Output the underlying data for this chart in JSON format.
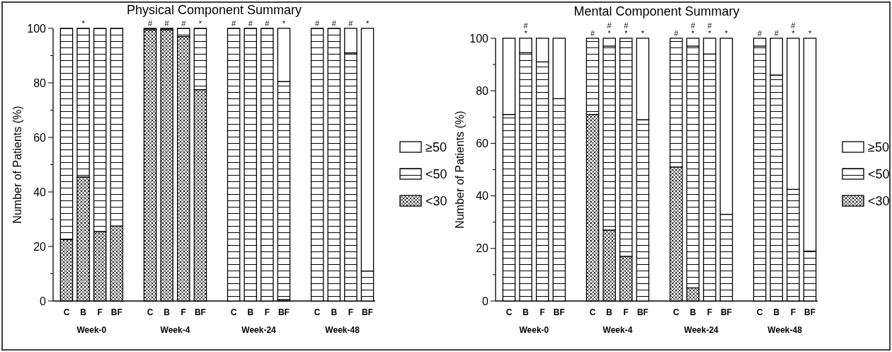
{
  "chart_data": [
    {
      "type": "bar",
      "stacked": true,
      "title": "Physical Component Summary",
      "ylabel": "Number of Patients (%)",
      "legend": "right",
      "grid": false,
      "categories": [
        "C",
        "B",
        "F",
        "BF",
        null,
        "C",
        "B",
        "F",
        "BF",
        null,
        "C",
        "B",
        "F",
        "BF",
        null,
        "C",
        "B",
        "F",
        "BF"
      ],
      "annotations": [
        "Week-0",
        "Week-4",
        "Week-24",
        "Week-48"
      ],
      "ylim": [
        0,
        100
      ],
      "yticks": [
        0,
        {
          "value": 10,
          "label": null
        },
        20,
        {
          "value": 30,
          "label": null
        },
        40,
        {
          "value": 50,
          "label": null
        },
        60,
        {
          "value": 70,
          "label": null
        },
        80,
        {
          "value": 90,
          "label": null
        },
        100
      ],
      "series": [
        {
          "name": "<30",
          "color": "#000000",
          "values": [
            22.5,
            45.5,
            25.5,
            27.5,
            null,
            99.5,
            99.5,
            97,
            77.5,
            null,
            0,
            0,
            0,
            0.5,
            null,
            0,
            0,
            0,
            0
          ]
        },
        {
          "name": "<50",
          "color": "#000000",
          "values": [
            77.5,
            54.5,
            74.5,
            72.5,
            null,
            0.5,
            0.5,
            3,
            22.5,
            null,
            100,
            100,
            100,
            80,
            null,
            100,
            100,
            91,
            11
          ]
        },
        {
          "name": "≥50",
          "color": "#000000",
          "values": [
            0,
            0,
            0,
            0,
            null,
            0,
            0,
            0,
            0,
            null,
            0,
            0,
            0,
            19.5,
            null,
            0,
            0,
            9,
            89
          ],
          "value_labels": [
            null,
            "*",
            null,
            null,
            null,
            "#",
            "#",
            "#",
            "*",
            null,
            "#",
            "#",
            "#",
            "*",
            null,
            "#",
            "#",
            "#",
            "*"
          ]
        }
      ]
    },
    {
      "type": "bar",
      "stacked": true,
      "title": "Mental Component Summary",
      "ylabel": "Number of Patients (%)",
      "legend": "right",
      "grid": false,
      "categories": [
        "C",
        "B",
        "F",
        "BF",
        null,
        "C",
        "B",
        "F",
        "BF",
        null,
        "C",
        "B",
        "F",
        "BF",
        null,
        "C",
        "B",
        "F",
        "BF"
      ],
      "annotations": [
        "Week-0",
        "Week-4",
        "Week-24",
        "Week-48"
      ],
      "ylim": [
        0,
        100
      ],
      "yticks": [
        0,
        {
          "value": 10,
          "label": null
        },
        20,
        {
          "value": 30,
          "label": null
        },
        40,
        {
          "value": 50,
          "label": null
        },
        60,
        {
          "value": 70,
          "label": null
        },
        80,
        {
          "value": 90,
          "label": null
        },
        100
      ],
      "series": [
        {
          "name": "<30",
          "color": "#000000",
          "values": [
            0,
            0,
            0,
            0,
            null,
            71,
            27,
            17,
            0,
            null,
            51,
            5,
            0,
            0,
            null,
            0,
            0,
            0,
            0
          ]
        },
        {
          "name": "<50",
          "color": "#000000",
          "values": [
            71,
            94.5,
            91,
            77,
            null,
            29,
            70,
            83,
            69,
            null,
            49,
            92,
            94,
            33,
            null,
            97,
            86,
            42.5,
            19
          ]
        },
        {
          "name": "≥50",
          "color": "#000000",
          "values": [
            29,
            5.5,
            9,
            23,
            null,
            0,
            3,
            0,
            31,
            null,
            0,
            3,
            6,
            67,
            null,
            3,
            14,
            57.5,
            81
          ],
          "value_labels": [
            null,
            "#\n*",
            null,
            null,
            null,
            "#",
            "#\n*",
            "#\n*",
            "*",
            null,
            "#",
            "#\n*",
            "#\n*",
            "*",
            null,
            "#",
            "#",
            "#\n*",
            "*"
          ]
        }
      ]
    }
  ]
}
